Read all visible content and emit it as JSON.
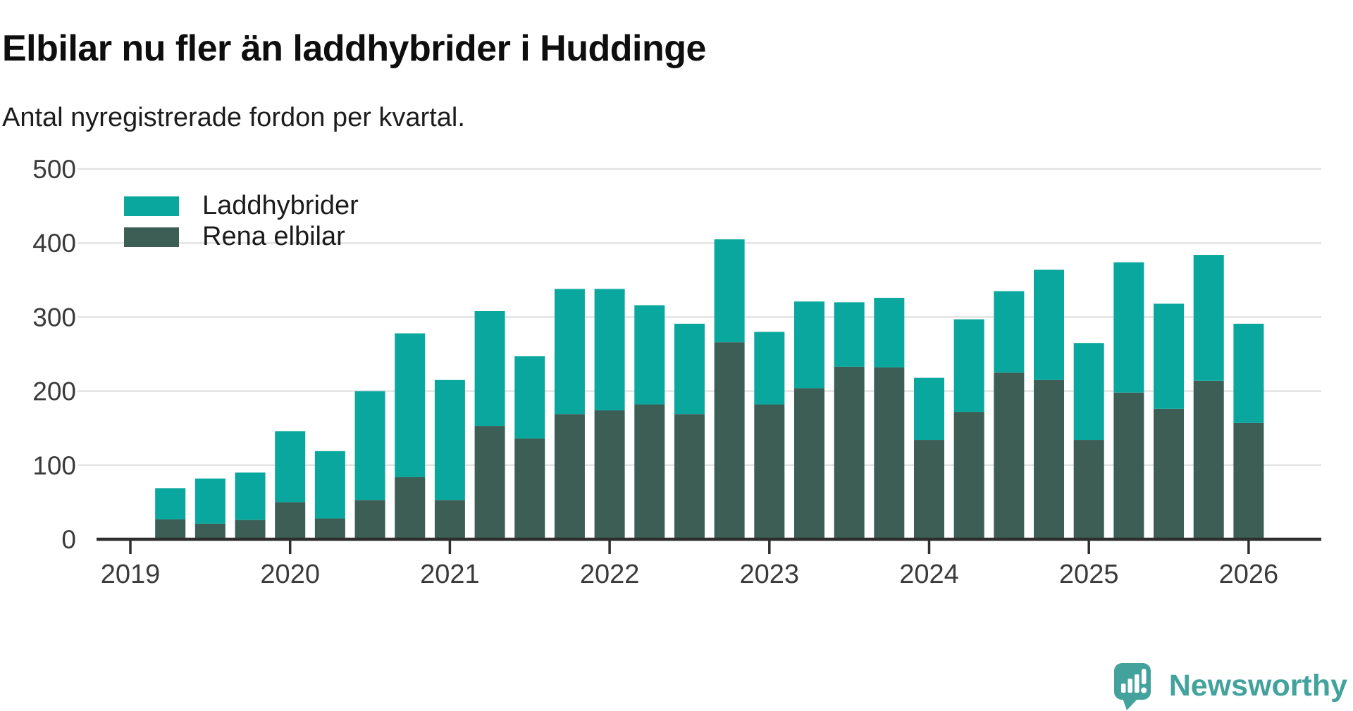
{
  "header": {
    "title": "Elbilar nu fler än laddhybrider i Huddinge",
    "subtitle": "Antal nyregistrerade fordon per kvartal."
  },
  "chart_data": {
    "type": "bar",
    "stacked": true,
    "title": "Elbilar nu fler än laddhybrider i Huddinge",
    "subtitle": "Antal nyregistrerade fordon per kvartal.",
    "xlabel": "",
    "ylabel": "",
    "categories": [
      "2019 Q2",
      "2019 Q3",
      "2019 Q4",
      "2020 Q1",
      "2020 Q2",
      "2020 Q3",
      "2020 Q4",
      "2021 Q1",
      "2021 Q2",
      "2021 Q3",
      "2021 Q4",
      "2022 Q1",
      "2022 Q2",
      "2022 Q3",
      "2022 Q4",
      "2023 Q1",
      "2023 Q2",
      "2023 Q3",
      "2023 Q4",
      "2024 Q1",
      "2024 Q2",
      "2024 Q3",
      "2024 Q4",
      "2025 Q1",
      "2025 Q2",
      "2025 Q3",
      "2025 Q4",
      "2026 Q1"
    ],
    "series": [
      {
        "name": "Laddhybrider",
        "color": "#0aa79e",
        "stack_order": 2,
        "values": [
          42,
          61,
          64,
          96,
          91,
          147,
          194,
          162,
          155,
          111,
          169,
          164,
          134,
          122,
          139,
          98,
          117,
          87,
          94,
          84,
          125,
          110,
          149,
          131,
          176,
          142,
          170,
          134
        ]
      },
      {
        "name": "Rena elbilar",
        "color": "#3c5e55",
        "stack_order": 1,
        "values": [
          27,
          21,
          26,
          50,
          28,
          53,
          84,
          53,
          153,
          136,
          169,
          174,
          182,
          169,
          266,
          182,
          204,
          233,
          232,
          134,
          172,
          225,
          215,
          134,
          198,
          176,
          214,
          157
        ]
      }
    ],
    "totals": [
      69,
      82,
      90,
      146,
      119,
      200,
      278,
      215,
      308,
      247,
      338,
      338,
      316,
      291,
      405,
      280,
      321,
      320,
      326,
      218,
      297,
      335,
      364,
      265,
      374,
      318,
      384,
      291
    ],
    "x_axis": {
      "tick_labels": [
        "2019",
        "2020",
        "2021",
        "2022",
        "2023",
        "2024",
        "2025",
        "2026"
      ]
    },
    "y_axis": {
      "min": 0,
      "max": 500,
      "step": 100,
      "tick_labels": [
        "0",
        "100",
        "200",
        "300",
        "400",
        "500"
      ]
    },
    "grid": true,
    "legend_position": "top-left"
  },
  "footer": {
    "brand": "Newsworthy"
  },
  "colors": {
    "accent_teal": "#0aa79e",
    "dark_green": "#3c5e55",
    "grid": "#e3e3e3",
    "axis_line": "#2e2e2e",
    "tick_text": "#3a3a3a",
    "logo_teal": "#43a39c"
  }
}
